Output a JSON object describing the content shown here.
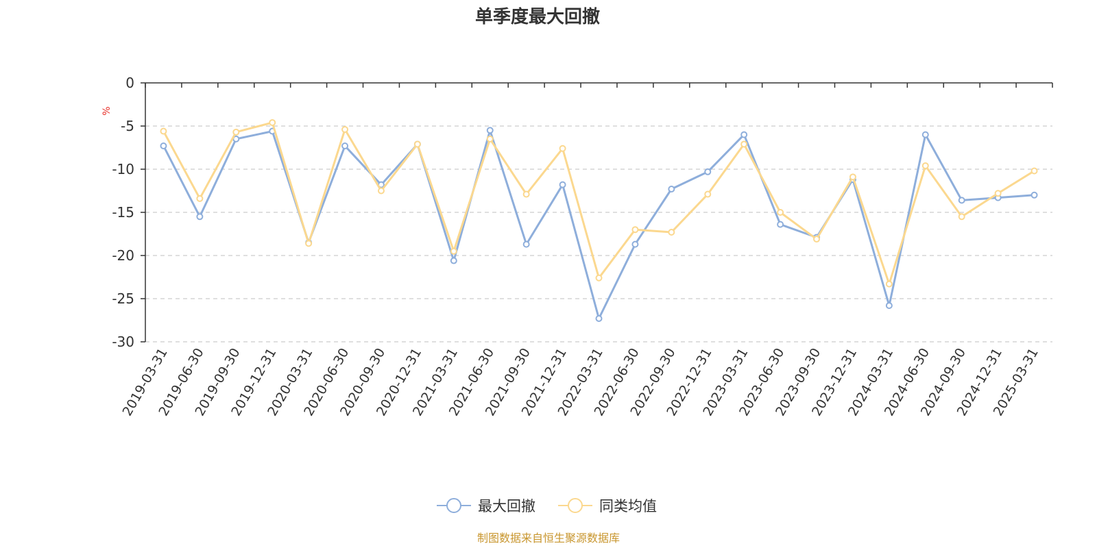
{
  "chart_data": {
    "type": "line",
    "title": "单季度最大回撤",
    "ylabel": "%",
    "ylim": [
      -30,
      0
    ],
    "yticks": [
      0,
      -5,
      -10,
      -15,
      -20,
      -25,
      -30
    ],
    "grid": true,
    "legend_position": "bottom-center",
    "categories": [
      "2019-03-31",
      "2019-06-30",
      "2019-09-30",
      "2019-12-31",
      "2020-03-31",
      "2020-06-30",
      "2020-09-30",
      "2020-12-31",
      "2021-03-31",
      "2021-06-30",
      "2021-09-30",
      "2021-12-31",
      "2022-03-31",
      "2022-06-30",
      "2022-09-30",
      "2022-12-31",
      "2023-03-31",
      "2023-06-30",
      "2023-09-30",
      "2023-12-31",
      "2024-03-31",
      "2024-06-30",
      "2024-09-30",
      "2024-12-31",
      "2025-03-31"
    ],
    "series": [
      {
        "name": "最大回撤",
        "color": "#8eaedb",
        "values": [
          -7.3,
          -15.5,
          -6.5,
          -5.6,
          -18.5,
          -7.3,
          -11.8,
          -7.1,
          -20.6,
          -5.5,
          -18.7,
          -11.8,
          -27.3,
          -18.7,
          -12.3,
          -10.3,
          -6.0,
          -16.4,
          -17.9,
          -11.2,
          -25.8,
          -6.0,
          -13.6,
          -13.3,
          -13.0
        ]
      },
      {
        "name": "同类均值",
        "color": "#fbd88f",
        "values": [
          -5.6,
          -13.4,
          -5.7,
          -4.6,
          -18.6,
          -5.4,
          -12.5,
          -7.1,
          -19.5,
          -6.5,
          -12.9,
          -7.6,
          -22.6,
          -17.0,
          -17.3,
          -12.9,
          -7.1,
          -15.0,
          -18.1,
          -10.9,
          -23.3,
          -9.6,
          -15.5,
          -12.8,
          -10.2
        ]
      }
    ]
  },
  "footer": {
    "source": "制图数据来自恒生聚源数据库"
  }
}
